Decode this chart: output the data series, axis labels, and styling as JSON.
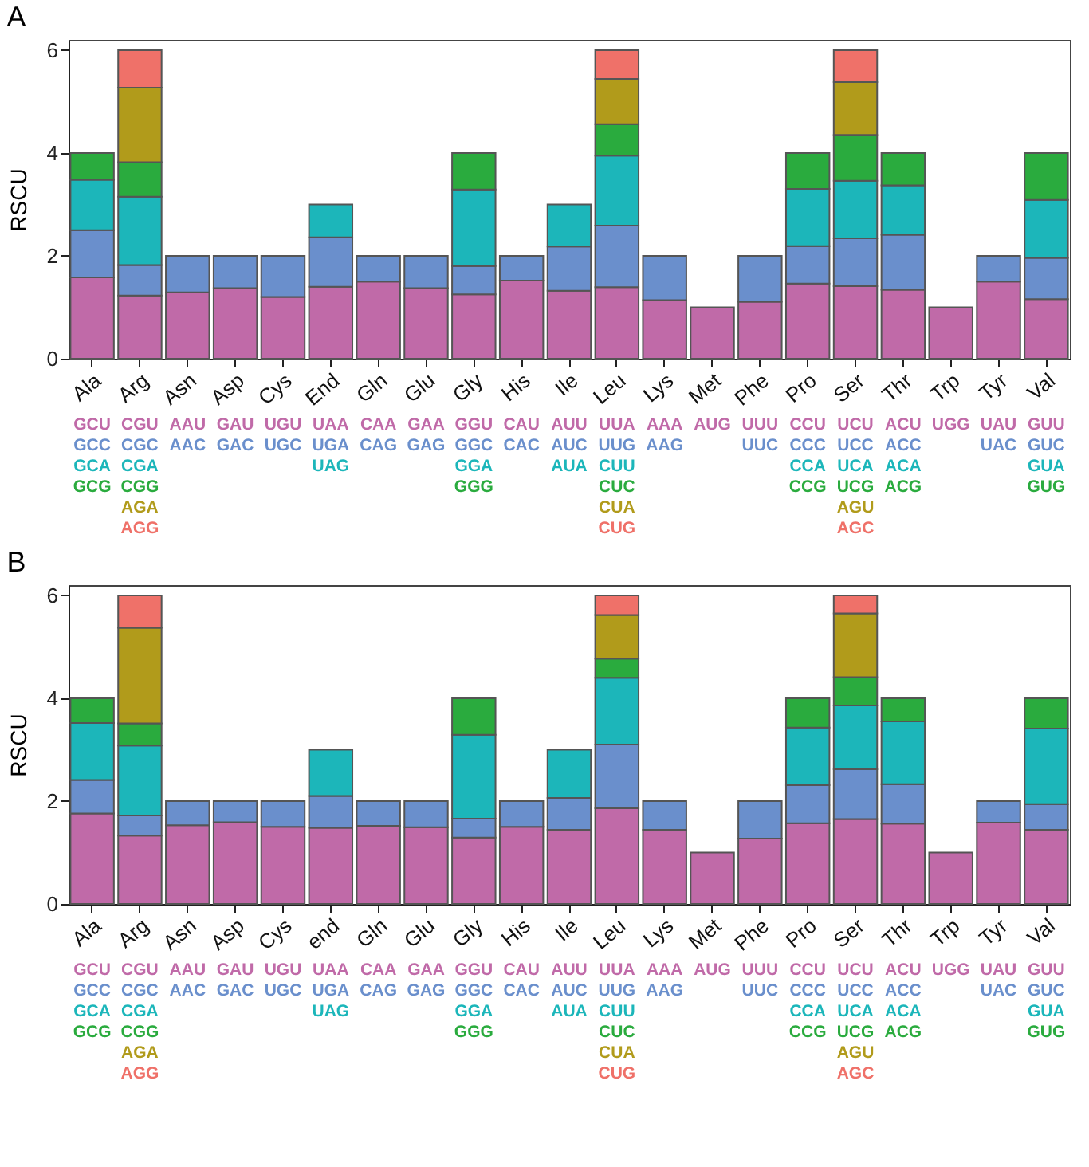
{
  "chart_data": [
    {
      "type": "bar",
      "title": "A",
      "ylabel": "RSCU",
      "stacked": true,
      "ylim": [
        0,
        6.2
      ],
      "yticks": [
        0,
        2,
        4,
        6
      ],
      "categories": [
        "Ala",
        "Arg",
        "Asn",
        "Asp",
        "Cys",
        "End",
        "Gln",
        "Glu",
        "Gly",
        "His",
        "Ile",
        "Leu",
        "Lys",
        "Met",
        "Phe",
        "Pro",
        "Ser",
        "Thr",
        "Trp",
        "Tyr",
        "Val"
      ],
      "series": [
        {
          "color": "#c06aa8",
          "values": [
            1.58,
            1.23,
            1.29,
            1.37,
            1.2,
            1.4,
            1.5,
            1.37,
            1.25,
            1.52,
            1.32,
            1.39,
            1.14,
            1.0,
            1.11,
            1.46,
            1.41,
            1.34,
            1.0,
            1.5,
            1.16
          ]
        },
        {
          "color": "#6a8fcc",
          "values": [
            0.92,
            0.59,
            0.71,
            0.63,
            0.8,
            0.96,
            0.5,
            0.63,
            0.55,
            0.48,
            0.86,
            1.2,
            0.86,
            null,
            0.89,
            0.73,
            0.93,
            1.07,
            null,
            0.5,
            0.8
          ]
        },
        {
          "color": "#1cb6ba",
          "values": [
            0.98,
            1.33,
            null,
            null,
            null,
            0.64,
            null,
            null,
            1.49,
            null,
            0.82,
            1.36,
            null,
            null,
            null,
            1.11,
            1.12,
            0.96,
            null,
            null,
            1.13
          ]
        },
        {
          "color": "#2aab3e",
          "values": [
            0.52,
            0.67,
            null,
            null,
            null,
            null,
            null,
            null,
            0.71,
            null,
            null,
            0.61,
            null,
            null,
            null,
            0.7,
            0.89,
            0.63,
            null,
            null,
            0.91
          ]
        },
        {
          "color": "#b19b1b",
          "values": [
            null,
            1.45,
            null,
            null,
            null,
            null,
            null,
            null,
            null,
            null,
            null,
            0.88,
            null,
            null,
            null,
            null,
            1.03,
            null,
            null,
            null,
            null
          ]
        },
        {
          "color": "#ef7169",
          "values": [
            null,
            0.73,
            null,
            null,
            null,
            null,
            null,
            null,
            null,
            null,
            null,
            0.56,
            null,
            null,
            null,
            null,
            0.62,
            null,
            null,
            null,
            null
          ]
        }
      ],
      "annotations": [
        "GCU",
        "GCC",
        "GCA",
        "GCG",
        "CGU",
        "CGC",
        "CGA",
        "CGG",
        "AGA",
        "AGG",
        "AAU",
        "AAC",
        "GAU",
        "GAC",
        "UGU",
        "UGC",
        "UAA",
        "UGA",
        "UAG",
        "CAA",
        "CAG",
        "GAA",
        "GAG",
        "GGU",
        "GGC",
        "GGA",
        "GGG",
        "CAU",
        "CAC",
        "AUU",
        "AUC",
        "AUA",
        "UUA",
        "UUG",
        "CUU",
        "CUC",
        "CUA",
        "CUG",
        "AAA",
        "AAG",
        "AUG",
        "UUU",
        "UUC",
        "CCU",
        "CCC",
        "CCA",
        "CCG",
        "UCU",
        "UCC",
        "UCA",
        "UCG",
        "AGU",
        "AGC",
        "ACU",
        "ACC",
        "ACA",
        "ACG",
        "UGG",
        "UAU",
        "UAC",
        "GUU",
        "GUC",
        "GUA",
        "GUG"
      ]
    },
    {
      "type": "bar",
      "title": "B",
      "ylabel": "RSCU",
      "stacked": true,
      "ylim": [
        0,
        6.2
      ],
      "yticks": [
        0,
        2,
        4,
        6
      ],
      "categories": [
        "Ala",
        "Arg",
        "Asn",
        "Asp",
        "Cys",
        "end",
        "Gln",
        "Glu",
        "Gly",
        "His",
        "Ile",
        "Leu",
        "Lys",
        "Met",
        "Phe",
        "Pro",
        "Ser",
        "Thr",
        "Trp",
        "Tyr",
        "Val"
      ],
      "series": [
        {
          "color": "#c06aa8",
          "values": [
            1.76,
            1.33,
            1.53,
            1.59,
            1.5,
            1.48,
            1.52,
            1.49,
            1.29,
            1.5,
            1.44,
            1.86,
            1.44,
            1.0,
            1.27,
            1.57,
            1.65,
            1.56,
            1.0,
            1.58,
            1.44
          ]
        },
        {
          "color": "#6a8fcc",
          "values": [
            0.65,
            0.39,
            0.47,
            0.41,
            0.5,
            0.62,
            0.48,
            0.51,
            0.37,
            0.5,
            0.62,
            1.24,
            0.56,
            null,
            0.73,
            0.74,
            0.97,
            0.77,
            null,
            0.42,
            0.5
          ]
        },
        {
          "color": "#1cb6ba",
          "values": [
            1.11,
            1.36,
            null,
            null,
            null,
            0.9,
            null,
            null,
            1.63,
            null,
            0.94,
            1.3,
            null,
            null,
            null,
            1.12,
            1.24,
            1.22,
            null,
            null,
            1.47
          ]
        },
        {
          "color": "#2aab3e",
          "values": [
            0.48,
            0.43,
            null,
            null,
            null,
            null,
            null,
            null,
            0.71,
            null,
            null,
            0.37,
            null,
            null,
            null,
            0.57,
            0.55,
            0.45,
            null,
            null,
            0.59
          ]
        },
        {
          "color": "#b19b1b",
          "values": [
            null,
            1.86,
            null,
            null,
            null,
            null,
            null,
            null,
            null,
            null,
            null,
            0.85,
            null,
            null,
            null,
            null,
            1.24,
            null,
            null,
            null,
            null
          ]
        },
        {
          "color": "#ef7169",
          "values": [
            null,
            0.63,
            null,
            null,
            null,
            null,
            null,
            null,
            null,
            null,
            null,
            0.38,
            null,
            null,
            null,
            null,
            0.35,
            null,
            null,
            null,
            null
          ]
        }
      ],
      "annotations": [
        "GCU",
        "GCC",
        "GCA",
        "GCG",
        "CGU",
        "CGC",
        "CGA",
        "CGG",
        "AGA",
        "AGG",
        "AAU",
        "AAC",
        "GAU",
        "GAC",
        "UGU",
        "UGC",
        "UAA",
        "UGA",
        "UAG",
        "CAA",
        "CAG",
        "GAA",
        "GAG",
        "GGU",
        "GGC",
        "GGA",
        "GGG",
        "CAU",
        "CAC",
        "AUU",
        "AUC",
        "AUA",
        "UUA",
        "UUG",
        "CUU",
        "CUC",
        "CUA",
        "CUG",
        "AAA",
        "AAG",
        "AUG",
        "UUU",
        "UUC",
        "CCU",
        "CCC",
        "CCA",
        "CCG",
        "UCU",
        "UCC",
        "UCA",
        "UCG",
        "AGU",
        "AGC",
        "ACU",
        "ACC",
        "ACA",
        "ACG",
        "UGG",
        "UAU",
        "UAC",
        "GUU",
        "GUC",
        "GUA",
        "GUG"
      ]
    }
  ]
}
